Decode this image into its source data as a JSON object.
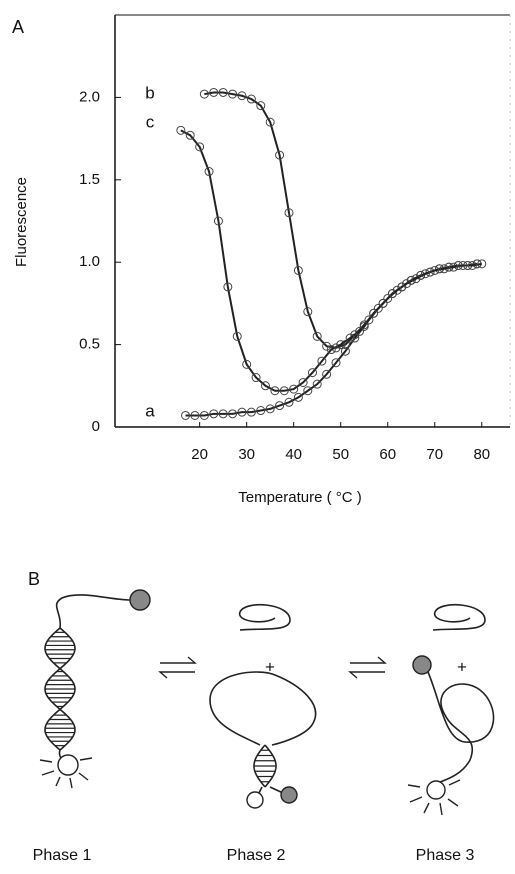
{
  "chart_data": {
    "type": "scatter-line",
    "panel_label": "A",
    "y_label": "Fluorescence",
    "x_label": "Temperature ( °C )",
    "xlim": [
      2,
      86
    ],
    "ylim": [
      0,
      2.5
    ],
    "xticks": [
      20,
      30,
      40,
      50,
      60,
      70,
      80
    ],
    "yticks": [
      0,
      0.5,
      {
        "value": 1,
        "label": "1.0"
      },
      1.5,
      {
        "value": 2,
        "label": "2.0"
      }
    ],
    "annotations": [
      "a",
      "b",
      "c"
    ],
    "series": [
      {
        "name": "a",
        "color": "#222222",
        "x": [
          17,
          19,
          21,
          23,
          25,
          27,
          29,
          31,
          33,
          35,
          37,
          39,
          41,
          43,
          45,
          47,
          49,
          51,
          53,
          55,
          57,
          59,
          61,
          63,
          65,
          67,
          69,
          71,
          73,
          75,
          77,
          79
        ],
        "values": [
          0.07,
          0.07,
          0.07,
          0.08,
          0.08,
          0.08,
          0.09,
          0.09,
          0.1,
          0.11,
          0.13,
          0.15,
          0.18,
          0.22,
          0.26,
          0.32,
          0.39,
          0.46,
          0.54,
          0.61,
          0.69,
          0.75,
          0.81,
          0.85,
          0.89,
          0.92,
          0.94,
          0.96,
          0.97,
          0.98,
          0.98,
          0.99
        ]
      },
      {
        "name": "b",
        "color": "#222222",
        "x": [
          21,
          23,
          25,
          27,
          29,
          31,
          33,
          35,
          37,
          39,
          41,
          43,
          45,
          47,
          49,
          51,
          53,
          55,
          57,
          59,
          61,
          63,
          65,
          67,
          69,
          71,
          73,
          75,
          77,
          79
        ],
        "values": [
          2.02,
          2.03,
          2.03,
          2.02,
          2.01,
          1.99,
          1.95,
          1.85,
          1.65,
          1.3,
          0.95,
          0.7,
          0.55,
          0.49,
          0.48,
          0.5,
          0.56,
          0.62,
          0.69,
          0.75,
          0.81,
          0.85,
          0.89,
          0.92,
          0.94,
          0.96,
          0.97,
          0.98,
          0.98,
          0.99
        ]
      },
      {
        "name": "c",
        "color": "#222222",
        "x": [
          16,
          18,
          20,
          22,
          24,
          26,
          28,
          30,
          32,
          34,
          36,
          38,
          40,
          42,
          44,
          46,
          48,
          50,
          52,
          54,
          56,
          58,
          60,
          62,
          64,
          66,
          68,
          70,
          72,
          74,
          76,
          78,
          80
        ],
        "values": [
          1.8,
          1.77,
          1.7,
          1.55,
          1.25,
          0.85,
          0.55,
          0.38,
          0.3,
          0.25,
          0.22,
          0.22,
          0.23,
          0.27,
          0.33,
          0.4,
          0.47,
          0.5,
          0.54,
          0.58,
          0.65,
          0.72,
          0.78,
          0.83,
          0.87,
          0.9,
          0.93,
          0.95,
          0.96,
          0.97,
          0.98,
          0.98,
          0.99
        ]
      }
    ]
  },
  "diagram": {
    "panel_label": "B",
    "phases": [
      "Phase 1",
      "Phase 2",
      "Phase 3"
    ],
    "plus_signs": [
      "+",
      "+"
    ]
  }
}
